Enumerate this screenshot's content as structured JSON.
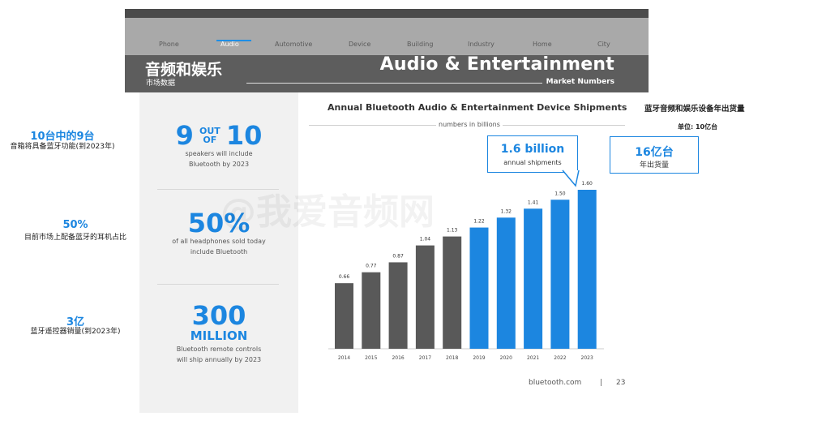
{
  "header": {
    "nav": [
      "Phone",
      "Audio",
      "Automotive",
      "Device",
      "Building",
      "Industry",
      "Home",
      "City"
    ],
    "active_nav": "Audio",
    "cn_title": "音频和娱乐",
    "cn_subtitle": "市场数据",
    "en_title": "Audio & Entertainment",
    "en_subtitle": "Market Numbers"
  },
  "stats": [
    {
      "big_a": "9",
      "big_mid_top": "OUT",
      "big_mid_bottom": "OF",
      "big_b": "10",
      "text": "speakers will include Bluetooth by 2023"
    },
    {
      "big": "50%",
      "text": "of all headphones sold today include Bluetooth"
    },
    {
      "big": "300",
      "big2": "MILLION",
      "text": "Bluetooth remote controls will ship annually by 2023"
    }
  ],
  "cn_notes": [
    {
      "big": "10台中的9台",
      "text": "音箱将具备蓝牙功能(到2023年)"
    },
    {
      "big": "50%",
      "text": "目前市场上配备蓝牙的耳机占比"
    },
    {
      "big": "3亿",
      "text": "蓝牙遥控器销量(到2023年)"
    }
  ],
  "chart": {
    "cn_title": "蓝牙音频和娱乐设备年出货量",
    "cn_unit": "单位: 10亿台",
    "callout_en_big": "1.6 billion",
    "callout_en_small": "annual shipments",
    "callout_cn_big": "16亿台",
    "callout_cn_small": "年出货量"
  },
  "footer": {
    "brand": "bluetooth.com",
    "sep": "|",
    "page": "23"
  },
  "watermark": "@我爱音频网",
  "colors": {
    "actual": "#595959",
    "forecast": "#1c86e0"
  },
  "chart_data": {
    "type": "bar",
    "title": "Annual Bluetooth Audio & Entertainment Device Shipments",
    "unit_label": "numbers in billions",
    "categories": [
      "2014",
      "2015",
      "2016",
      "2017",
      "2018",
      "2019",
      "2020",
      "2021",
      "2022",
      "2023"
    ],
    "values": [
      0.66,
      0.77,
      0.87,
      1.04,
      1.13,
      1.22,
      1.32,
      1.41,
      1.5,
      1.6
    ],
    "value_labels": [
      "0.66",
      "0.77",
      "0.87",
      "1.04",
      "1.13",
      "1.22",
      "1.32",
      "1.41",
      "1.50",
      "1.60"
    ],
    "forecast_from": "2019",
    "ylim": [
      0,
      1.6
    ]
  }
}
